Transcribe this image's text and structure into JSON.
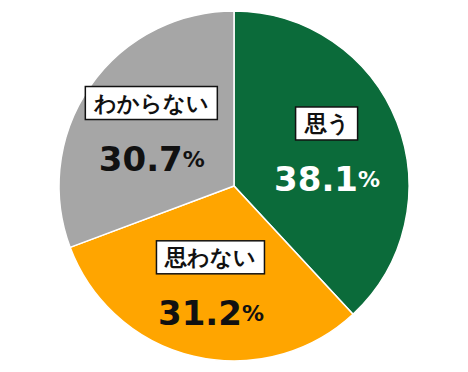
{
  "chart_data": {
    "type": "pie",
    "categories": [
      "思う",
      "思わない",
      "わからない"
    ],
    "values": [
      38.1,
      31.2,
      30.7
    ],
    "value_labels": [
      "38.1%",
      "31.2%",
      "30.7%"
    ],
    "colors": [
      "#0b6b3a",
      "#ffa500",
      "#a6a6a6"
    ],
    "data_labels": true
  }
}
